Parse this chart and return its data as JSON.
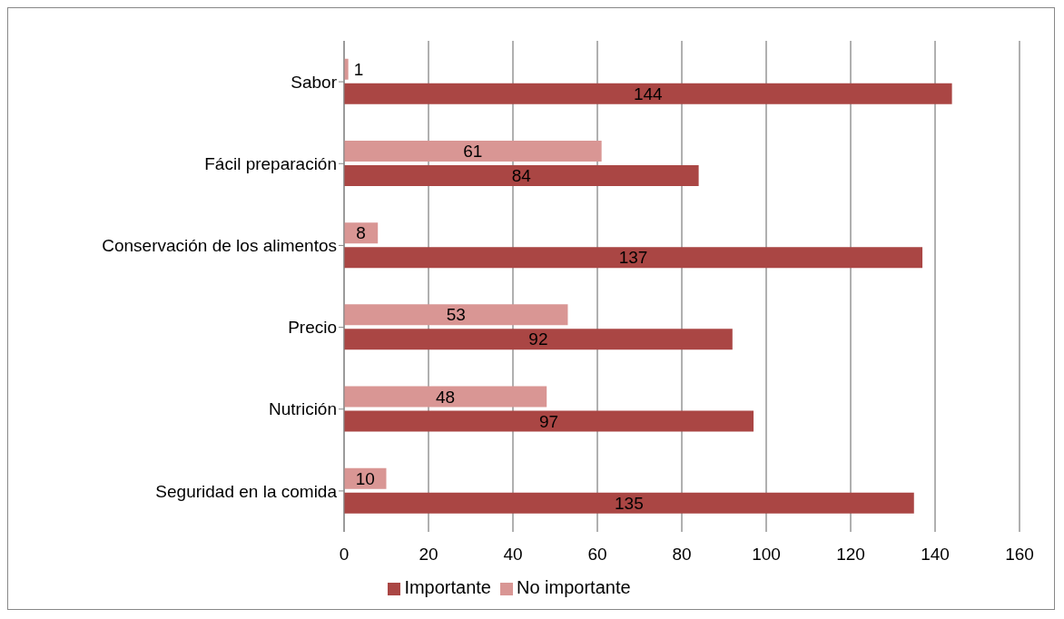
{
  "chart_data": {
    "type": "bar",
    "orientation": "horizontal",
    "categories": [
      "Sabor",
      "Fácil preparación",
      "Conservación de los alimentos",
      "Precio",
      "Nutrición",
      "Seguridad en la comida"
    ],
    "series": [
      {
        "name": "No importante",
        "color": "#d99694",
        "values": [
          1,
          61,
          8,
          53,
          48,
          10
        ]
      },
      {
        "name": "Importante",
        "color": "#aa4644",
        "values": [
          144,
          84,
          137,
          92,
          97,
          135
        ]
      }
    ],
    "xlim": [
      0,
      160
    ],
    "xticks": [
      0,
      20,
      40,
      60,
      80,
      100,
      120,
      140,
      160
    ],
    "grid": "x",
    "legend": "bottom",
    "data_labels": true
  }
}
